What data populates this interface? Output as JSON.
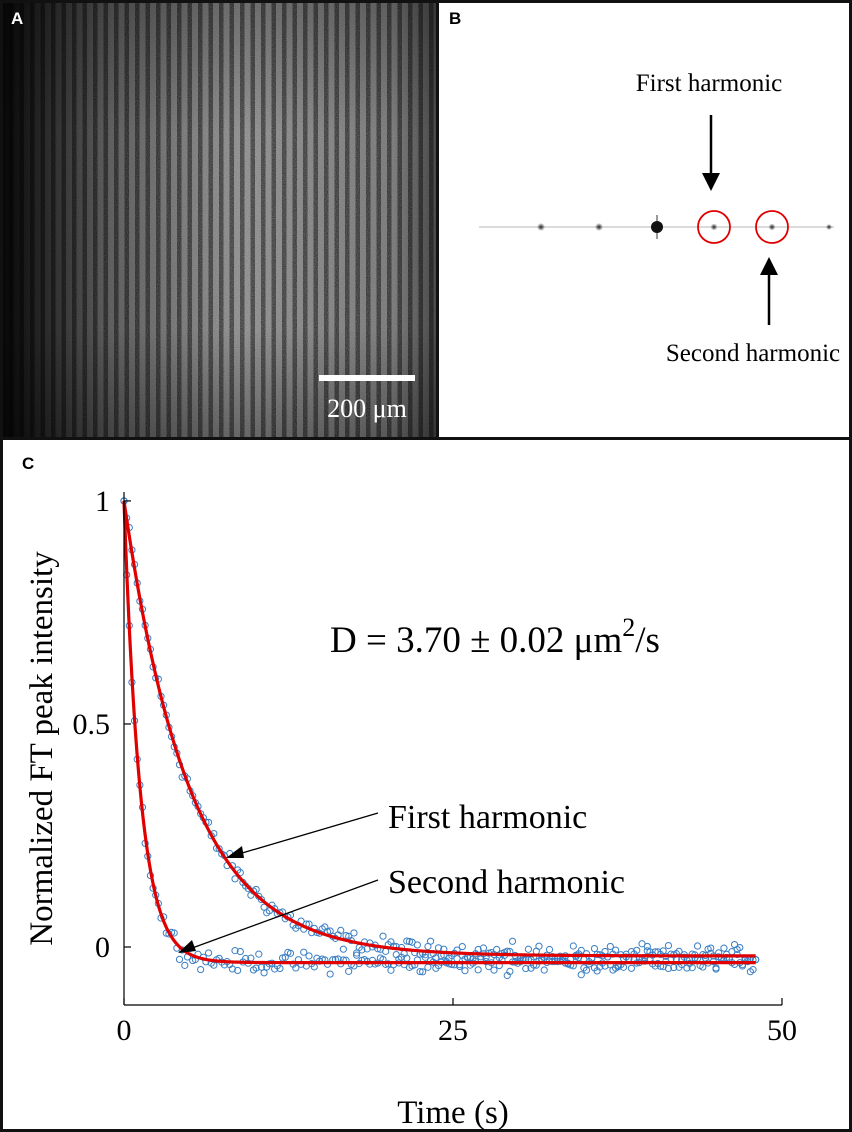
{
  "panel_a": {
    "label": "A",
    "scale_bar_text": "200 μm"
  },
  "panel_b": {
    "label": "B",
    "first_label": "First harmonic",
    "second_label": "Second harmonic"
  },
  "panel_c": {
    "label": "C",
    "equation": "D = 3.70 ± 0.02 μm",
    "equation_sup": "2",
    "equation_tail": "/s",
    "annot_first": "First harmonic",
    "annot_second": "Second harmonic"
  },
  "colors": {
    "fit_line": "#e00000",
    "markers": "#3a7fc4",
    "circles": "#e00000"
  },
  "chart_data": {
    "type": "scatter",
    "xlabel": "Time (s)",
    "ylabel": "Normalized FT peak intensity",
    "xlim": [
      0,
      50
    ],
    "ylim": [
      -0.13,
      1.02
    ],
    "xticks": [
      0,
      25,
      50
    ],
    "yticks": [
      0,
      0.5,
      1
    ],
    "xtick_labels": [
      "0",
      "25",
      "50"
    ],
    "ytick_labels": [
      "0",
      "0.5",
      "1"
    ],
    "series": [
      {
        "name": "First harmonic",
        "model": "exp_decay",
        "tau": 5.0,
        "offset": -0.02,
        "t_end": 48,
        "n_points": 240
      },
      {
        "name": "Second harmonic",
        "model": "exp_decay",
        "tau": 1.25,
        "offset": -0.035,
        "t_end": 48,
        "n_points": 240
      }
    ]
  }
}
